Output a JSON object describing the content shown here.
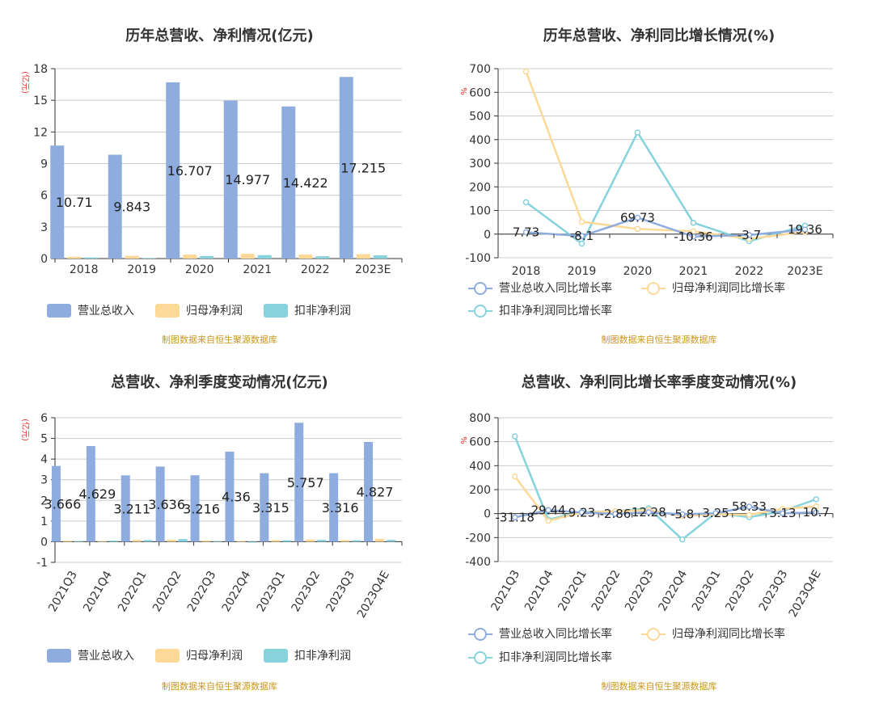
{
  "source": "制图数据来自恒生聚源数据库",
  "colors": {
    "revenue": "#8eadde",
    "profit": "#fdd998",
    "deducted": "#86d3dd",
    "rev_growth": "#8eadde",
    "profit_growth": "#fdd998",
    "deducted_growth": "#86d3dd",
    "axis_unit": "#e03030",
    "source": "#c8961e"
  },
  "panels": {
    "p1": {
      "title": "历年总营收、净利情况(亿元)",
      "unit": "(亿元)",
      "legend": [
        "营业总收入",
        "归母净利润",
        "扣非净利润"
      ]
    },
    "p2": {
      "title": "历年总营收、净利同比增长情况(%)",
      "unit": "%",
      "legend": [
        "营业总收入同比增长率",
        "归母净利润同比增长率",
        "扣非净利润同比增长率"
      ]
    },
    "p3": {
      "title": "总营收、净利季度变动情况(亿元)",
      "unit": "(亿元)",
      "legend": [
        "营业总收入",
        "归母净利润",
        "扣非净利润"
      ]
    },
    "p4": {
      "title": "总营收、净利同比增长率季度变动情况(%)",
      "unit": "%",
      "legend": [
        "营业总收入同比增长率",
        "归母净利润同比增长率",
        "扣非净利润同比增长率"
      ]
    }
  },
  "chart_data": [
    {
      "type": "bar",
      "title": "历年总营收、净利情况(亿元)",
      "ylabel": "(亿元)",
      "categories": [
        "2018",
        "2019",
        "2020",
        "2021",
        "2022",
        "2023E"
      ],
      "ylim": [
        0,
        18
      ],
      "yticks": [
        0,
        3,
        6,
        9,
        12,
        15,
        18
      ],
      "grid": true,
      "legend_position": "bottom",
      "series": [
        {
          "name": "营业总收入",
          "values": [
            10.71,
            9.843,
            16.707,
            14.977,
            14.422,
            17.215
          ],
          "labels": [
            "10.71",
            "9.843",
            "16.707",
            "14.977",
            "14.422",
            "17.215"
          ]
        },
        {
          "name": "归母净利润",
          "values": [
            0.17,
            0.26,
            0.38,
            0.45,
            0.38,
            0.42
          ]
        },
        {
          "name": "扣非净利润",
          "values": [
            0.1,
            0.06,
            0.24,
            0.33,
            0.22,
            0.3
          ]
        }
      ]
    },
    {
      "type": "line",
      "title": "历年总营收、净利同比增长情况(%)",
      "ylabel": "%",
      "categories": [
        "2018",
        "2019",
        "2020",
        "2021",
        "2022",
        "2023E"
      ],
      "ylim": [
        -100,
        700
      ],
      "yticks": [
        -100,
        0,
        100,
        200,
        300,
        400,
        500,
        600,
        700
      ],
      "grid": true,
      "legend_position": "bottom",
      "series": [
        {
          "name": "营业总收入同比增长率",
          "values": [
            7.73,
            -8.1,
            69.73,
            -10.36,
            -3.7,
            19.36
          ],
          "labels": [
            "7.73",
            "-8.1",
            "69.73",
            "-10.36",
            "-3.7",
            "19.36"
          ]
        },
        {
          "name": "归母净利润同比增长率",
          "values": [
            688,
            52,
            22,
            12,
            -20,
            10
          ]
        },
        {
          "name": "扣非净利润同比增长率",
          "values": [
            135,
            -40,
            430,
            48,
            -30,
            36
          ]
        }
      ]
    },
    {
      "type": "bar",
      "title": "总营收、净利季度变动情况(亿元)",
      "ylabel": "(亿元)",
      "categories": [
        "2021Q3",
        "2021Q4",
        "2022Q1",
        "2022Q2",
        "2022Q3",
        "2022Q4",
        "2023Q1",
        "2023Q2",
        "2023Q3",
        "2023Q4E"
      ],
      "ylim": [
        -1,
        6
      ],
      "yticks": [
        -1,
        0,
        1,
        2,
        3,
        4,
        5,
        6
      ],
      "grid": true,
      "legend_position": "bottom",
      "series": [
        {
          "name": "营业总收入",
          "values": [
            3.666,
            4.629,
            3.211,
            3.636,
            3.216,
            4.36,
            3.315,
            5.757,
            3.316,
            4.827
          ],
          "labels": [
            "3.666",
            "4.629",
            "3.211",
            "3.636",
            "3.216",
            "4.36",
            "3.315",
            "5.757",
            "3.316",
            "4.827"
          ]
        },
        {
          "name": "归母净利润",
          "values": [
            0.05,
            0.03,
            0.09,
            0.1,
            0.06,
            0.04,
            0.08,
            0.11,
            0.08,
            0.14
          ]
        },
        {
          "name": "扣非净利润",
          "values": [
            0.03,
            0.05,
            0.08,
            0.13,
            0.03,
            -0.04,
            0.07,
            0.09,
            0.07,
            0.09
          ]
        }
      ]
    },
    {
      "type": "line",
      "title": "总营收、净利同比增长率季度变动情况(%)",
      "ylabel": "%",
      "categories": [
        "2021Q3",
        "2021Q4",
        "2022Q1",
        "2022Q2",
        "2022Q3",
        "2022Q4",
        "2023Q1",
        "2023Q2",
        "2023Q3",
        "2023Q4E"
      ],
      "ylim": [
        -400,
        800
      ],
      "yticks": [
        -400,
        -200,
        0,
        200,
        400,
        600,
        800
      ],
      "grid": true,
      "legend_position": "bottom",
      "series": [
        {
          "name": "营业总收入同比增长率",
          "values": [
            -31.18,
            29.44,
            9.23,
            -2.86,
            12.28,
            -5.8,
            3.25,
            58.33,
            3.13,
            10.7
          ],
          "labels": [
            "-31.18",
            "29.44",
            "9.23",
            "-2.86",
            "12.28",
            "-5.8",
            "3.25",
            "58.33",
            "3.13",
            "10.7"
          ]
        },
        {
          "name": "归母净利润同比增长率",
          "values": [
            310,
            -60,
            10,
            20,
            30,
            -20,
            -5,
            -10,
            40,
            60
          ]
        },
        {
          "name": "扣非净利润同比增长率",
          "values": [
            645,
            -50,
            15,
            20,
            45,
            -215,
            5,
            -30,
            20,
            120
          ]
        }
      ]
    }
  ]
}
